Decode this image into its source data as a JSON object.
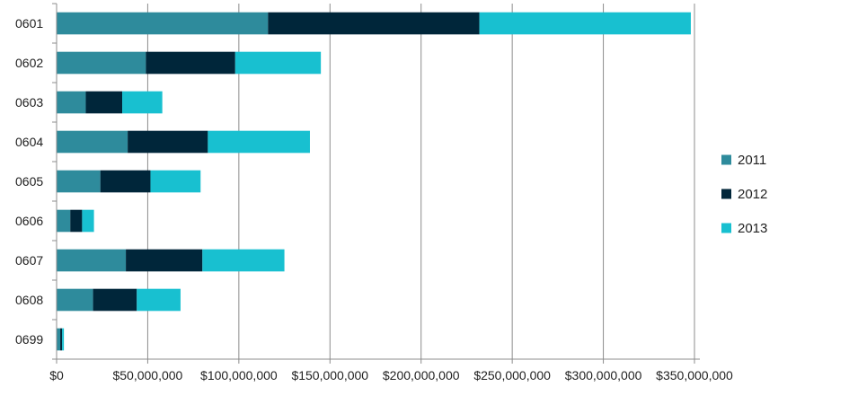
{
  "chart_data": {
    "type": "bar",
    "orientation": "horizontal",
    "stacked": true,
    "categories": [
      "0601",
      "0602",
      "0603",
      "0604",
      "0605",
      "0606",
      "0607",
      "0608",
      "0699"
    ],
    "series": [
      {
        "name": "2011",
        "color": "#2e8b9c",
        "values": [
          116000000,
          49000000,
          16000000,
          39000000,
          24000000,
          7500000,
          38000000,
          20000000,
          2000000
        ]
      },
      {
        "name": "2012",
        "color": "#00263a",
        "values": [
          116000000,
          49000000,
          20000000,
          44000000,
          27500000,
          6500000,
          42000000,
          24000000,
          1000000
        ]
      },
      {
        "name": "2013",
        "color": "#18c0d0",
        "values": [
          116000000,
          47000000,
          22000000,
          56000000,
          27500000,
          6500000,
          45000000,
          24000000,
          1000000
        ]
      }
    ],
    "xlim": [
      0,
      350000000
    ],
    "x_ticks": [
      "$0",
      "$50,000,000",
      "$100,000,000",
      "$150,000,000",
      "$200,000,000",
      "$250,000,000",
      "$300,000,000",
      "$350,000,000"
    ],
    "x_tick_values": [
      0,
      50000000,
      100000000,
      150000000,
      200000000,
      250000000,
      300000000,
      350000000
    ],
    "grid": "vertical",
    "legend_position": "right"
  }
}
